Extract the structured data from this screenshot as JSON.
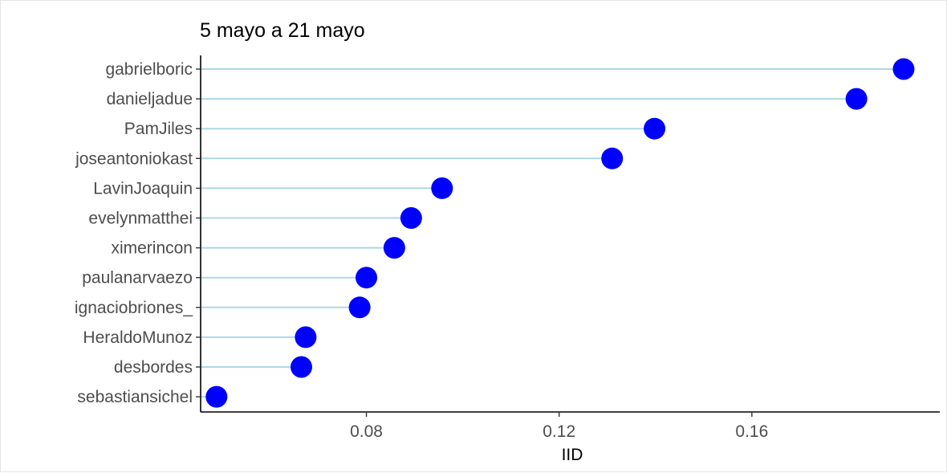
{
  "chart_data": {
    "type": "lollipop",
    "title": "5 mayo a 21 mayo",
    "xlabel": "IID",
    "ylabel": "",
    "categories": [
      "gabrielboric",
      "danieljadue",
      "PamJiles",
      "joseantoniokast",
      "LavinJoaquin",
      "evelynmatthei",
      "ximerincon",
      "paulanarvaezo",
      "ignaciobriones_",
      "HeraldoMunoz",
      "desbordes",
      "sebastiansichel"
    ],
    "values": [
      0.1915,
      0.1817,
      0.1398,
      0.131,
      0.0957,
      0.0893,
      0.0858,
      0.08,
      0.0786,
      0.0674,
      0.0665,
      0.0489
    ],
    "xlim": [
      0.0456,
      0.199
    ],
    "xticks": [
      0.08,
      0.12,
      0.16
    ],
    "xtick_labels": [
      "0.08",
      "0.12",
      "0.16"
    ],
    "colors": {
      "stem": "#add8e6",
      "point": "#0000ff",
      "axis": "#000000"
    },
    "grid": false
  }
}
